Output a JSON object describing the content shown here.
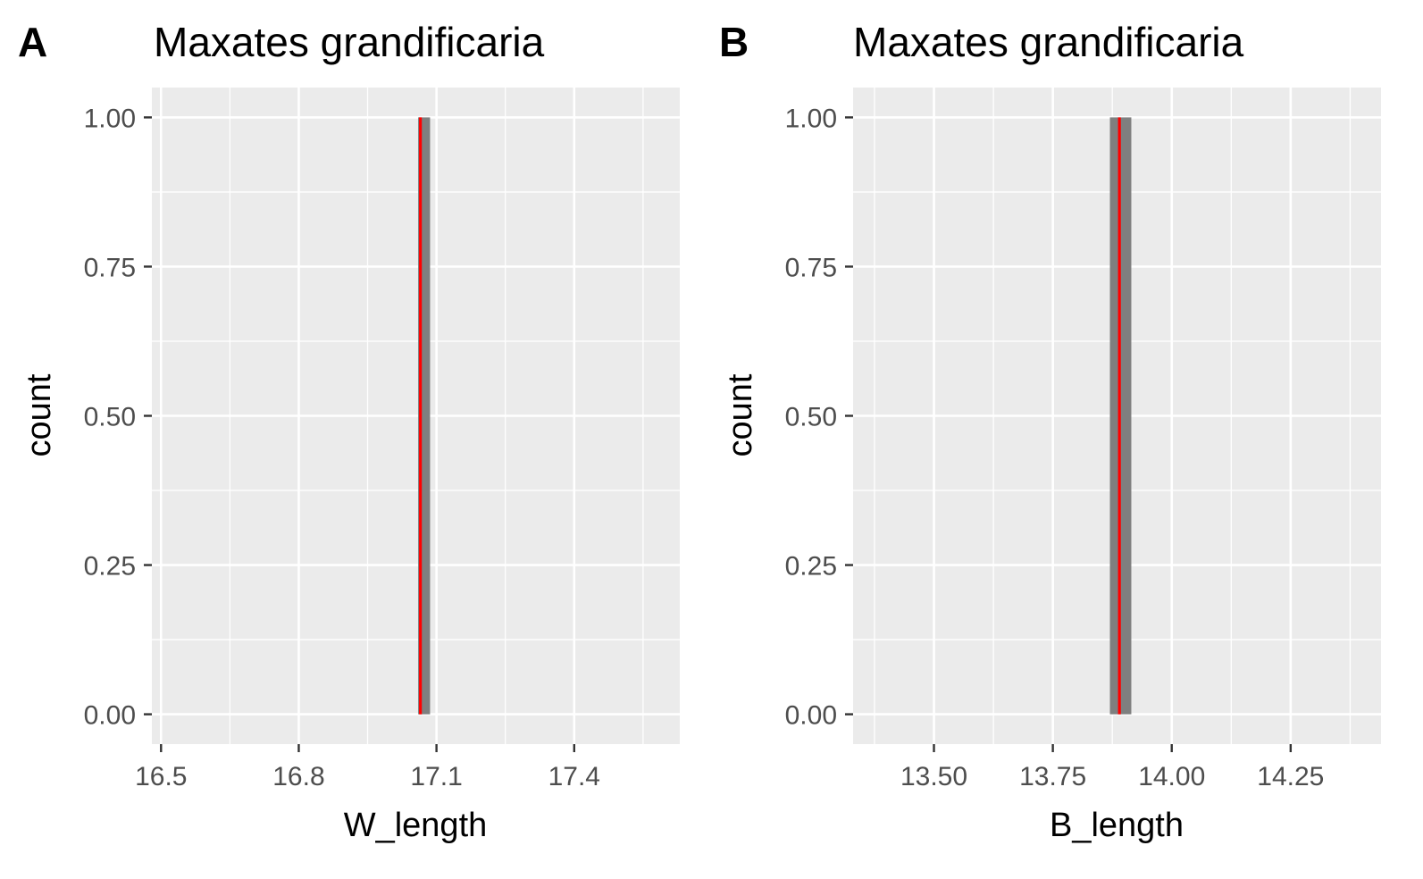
{
  "colors": {
    "panel_background": "#ebebeb",
    "grid_major": "#ffffff",
    "bar_fill": "#7f7f7f",
    "mean_line": "#ff0000",
    "tick_text": "#4d4d4d",
    "axis_tick": "#333333"
  },
  "chart_data": [
    {
      "type": "bar",
      "panel_tag": "A",
      "title": "Maxates grandificaria",
      "xlabel": "W_length",
      "ylabel": "count",
      "xlim": [
        16.48,
        17.63
      ],
      "ylim": [
        -0.05,
        1.05
      ],
      "x_ticks": [
        16.5,
        16.8,
        17.1,
        17.4
      ],
      "x_tick_labels": [
        "16.5",
        "16.8",
        "17.1",
        "17.4"
      ],
      "y_ticks": [
        0,
        0.25,
        0.5,
        0.75,
        1
      ],
      "y_tick_labels": [
        "0.00",
        "0.25",
        "0.50",
        "0.75",
        "1.00"
      ],
      "grid": true,
      "bars": [
        {
          "x_start": 17.06,
          "x_end": 17.086,
          "count": 1
        }
      ],
      "reference_line": {
        "x": 17.065,
        "color": "red"
      }
    },
    {
      "type": "bar",
      "panel_tag": "B",
      "title": "Maxates grandificaria",
      "xlabel": "B_length",
      "ylabel": "count",
      "xlim": [
        13.33,
        14.44
      ],
      "ylim": [
        -0.05,
        1.05
      ],
      "x_ticks": [
        13.5,
        13.75,
        14.0,
        14.25
      ],
      "x_tick_labels": [
        "13.50",
        "13.75",
        "14.00",
        "14.25"
      ],
      "y_ticks": [
        0,
        0.25,
        0.5,
        0.75,
        1
      ],
      "y_tick_labels": [
        "0.00",
        "0.25",
        "0.50",
        "0.75",
        "1.00"
      ],
      "grid": true,
      "bars": [
        {
          "x_start": 13.87,
          "x_end": 13.915,
          "count": 1
        }
      ],
      "reference_line": {
        "x": 13.89,
        "color": "red"
      }
    }
  ]
}
